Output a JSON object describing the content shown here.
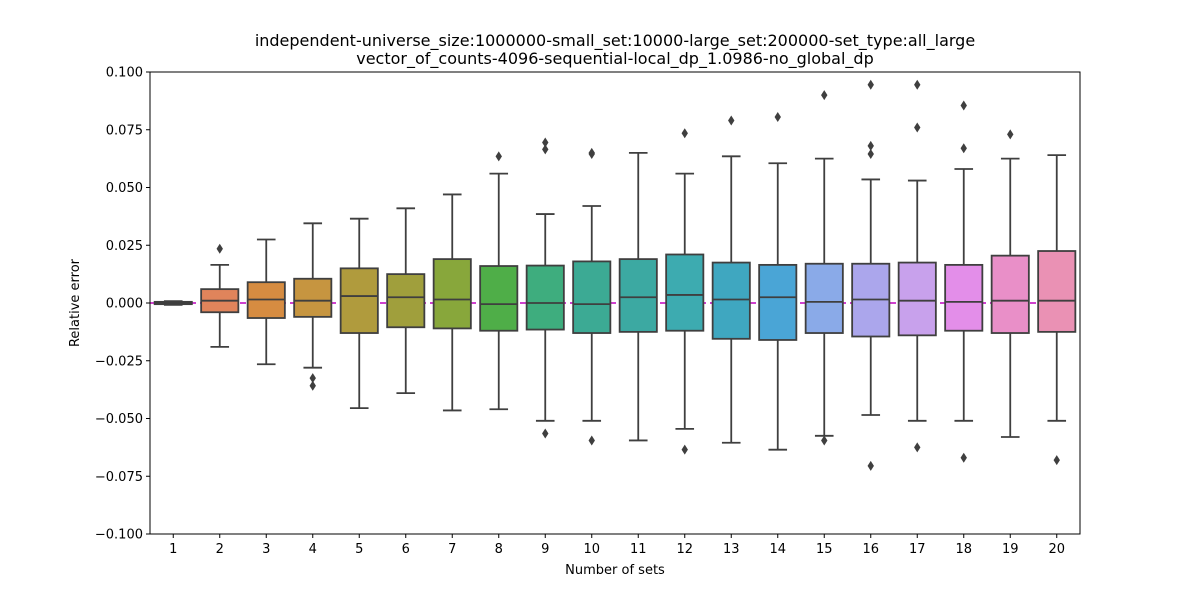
{
  "chart_data": {
    "type": "box",
    "title_lines": [
      "independent-universe_size:1000000-small_set:10000-large_set:200000-set_type:all_large",
      "vector_of_counts-4096-sequential-local_dp_1.0986-no_global_dp"
    ],
    "xlabel": "Number of sets",
    "ylabel": "Relative error",
    "ylim": [
      -0.1,
      0.1
    ],
    "yticks": [
      "-0.100",
      "-0.075",
      "-0.050",
      "-0.025",
      "0.000",
      "0.025",
      "0.050",
      "0.075",
      "0.100"
    ],
    "categories": [
      "1",
      "2",
      "3",
      "4",
      "5",
      "6",
      "7",
      "8",
      "9",
      "10",
      "11",
      "12",
      "13",
      "14",
      "15",
      "16",
      "17",
      "18",
      "19",
      "20"
    ],
    "reference_line": {
      "y": 0.0,
      "color": "#bf00bf",
      "style": "dashed"
    },
    "boxes": [
      {
        "cat": "1",
        "color": "#e9867a",
        "wlo": -0.0008,
        "q1": -0.0005,
        "med": 0.0,
        "q3": 0.0005,
        "whi": 0.0008,
        "outliers": []
      },
      {
        "cat": "2",
        "color": "#e0845b",
        "wlo": -0.019,
        "q1": -0.004,
        "med": 0.001,
        "q3": 0.006,
        "whi": 0.0165,
        "outliers": [
          0.0235
        ]
      },
      {
        "cat": "3",
        "color": "#d68c41",
        "wlo": -0.0265,
        "q1": -0.0065,
        "med": 0.0015,
        "q3": 0.009,
        "whi": 0.0275,
        "outliers": []
      },
      {
        "cat": "4",
        "color": "#c69540",
        "wlo": -0.028,
        "q1": -0.006,
        "med": 0.001,
        "q3": 0.0105,
        "whi": 0.0345,
        "outliers": [
          -0.0325,
          -0.0358
        ]
      },
      {
        "cat": "5",
        "color": "#b09b3d",
        "wlo": -0.0455,
        "q1": -0.013,
        "med": 0.003,
        "q3": 0.015,
        "whi": 0.0365,
        "outliers": []
      },
      {
        "cat": "6",
        "color": "#a09f3c",
        "wlo": -0.039,
        "q1": -0.0105,
        "med": 0.0025,
        "q3": 0.0125,
        "whi": 0.041,
        "outliers": []
      },
      {
        "cat": "7",
        "color": "#88a73b",
        "wlo": -0.0465,
        "q1": -0.011,
        "med": 0.0015,
        "q3": 0.019,
        "whi": 0.047,
        "outliers": []
      },
      {
        "cat": "8",
        "color": "#4fae48",
        "wlo": -0.046,
        "q1": -0.012,
        "med": -0.0005,
        "q3": 0.016,
        "whi": 0.056,
        "outliers": [
          0.0635
        ]
      },
      {
        "cat": "9",
        "color": "#3ead7e",
        "wlo": -0.051,
        "q1": -0.0115,
        "med": 0.0,
        "q3": 0.0162,
        "whi": 0.0385,
        "outliers": [
          0.0695,
          0.0665,
          -0.0565
        ]
      },
      {
        "cat": "10",
        "color": "#3caa94",
        "wlo": -0.051,
        "q1": -0.013,
        "med": -0.0005,
        "q3": 0.018,
        "whi": 0.042,
        "outliers": [
          0.065,
          0.0645,
          -0.0595
        ]
      },
      {
        "cat": "11",
        "color": "#3ca9a2",
        "wlo": -0.0595,
        "q1": -0.0125,
        "med": 0.0025,
        "q3": 0.019,
        "whi": 0.065,
        "outliers": []
      },
      {
        "cat": "12",
        "color": "#3dabb0",
        "wlo": -0.0545,
        "q1": -0.012,
        "med": 0.0035,
        "q3": 0.021,
        "whi": 0.056,
        "outliers": [
          0.0735,
          -0.0635
        ]
      },
      {
        "cat": "13",
        "color": "#3fa7c0",
        "wlo": -0.0605,
        "q1": -0.0155,
        "med": 0.0015,
        "q3": 0.0175,
        "whi": 0.0635,
        "outliers": [
          0.079
        ]
      },
      {
        "cat": "14",
        "color": "#4aa5d6",
        "wlo": -0.0635,
        "q1": -0.016,
        "med": 0.0025,
        "q3": 0.0165,
        "whi": 0.0605,
        "outliers": [
          0.0805
        ]
      },
      {
        "cat": "15",
        "color": "#8aaae8",
        "wlo": -0.0575,
        "q1": -0.013,
        "med": 0.0005,
        "q3": 0.017,
        "whi": 0.0625,
        "outliers": [
          0.09,
          -0.0595
        ]
      },
      {
        "cat": "16",
        "color": "#aba6ec",
        "wlo": -0.0485,
        "q1": -0.0145,
        "med": 0.0015,
        "q3": 0.017,
        "whi": 0.0535,
        "outliers": [
          0.0945,
          0.068,
          0.0645,
          -0.0705
        ]
      },
      {
        "cat": "17",
        "color": "#c8a1ec",
        "wlo": -0.051,
        "q1": -0.014,
        "med": 0.001,
        "q3": 0.0175,
        "whi": 0.053,
        "outliers": [
          0.0945,
          0.076,
          -0.0625
        ]
      },
      {
        "cat": "18",
        "color": "#e38ee9",
        "wlo": -0.051,
        "q1": -0.012,
        "med": 0.0005,
        "q3": 0.0165,
        "whi": 0.058,
        "outliers": [
          0.0855,
          0.067,
          -0.067
        ]
      },
      {
        "cat": "19",
        "color": "#e98fc8",
        "wlo": -0.058,
        "q1": -0.013,
        "med": 0.001,
        "q3": 0.0205,
        "whi": 0.0625,
        "outliers": [
          0.073
        ]
      },
      {
        "cat": "20",
        "color": "#ea91b4",
        "wlo": -0.051,
        "q1": -0.0125,
        "med": 0.001,
        "q3": 0.0225,
        "whi": 0.064,
        "outliers": [
          -0.068
        ]
      }
    ]
  }
}
